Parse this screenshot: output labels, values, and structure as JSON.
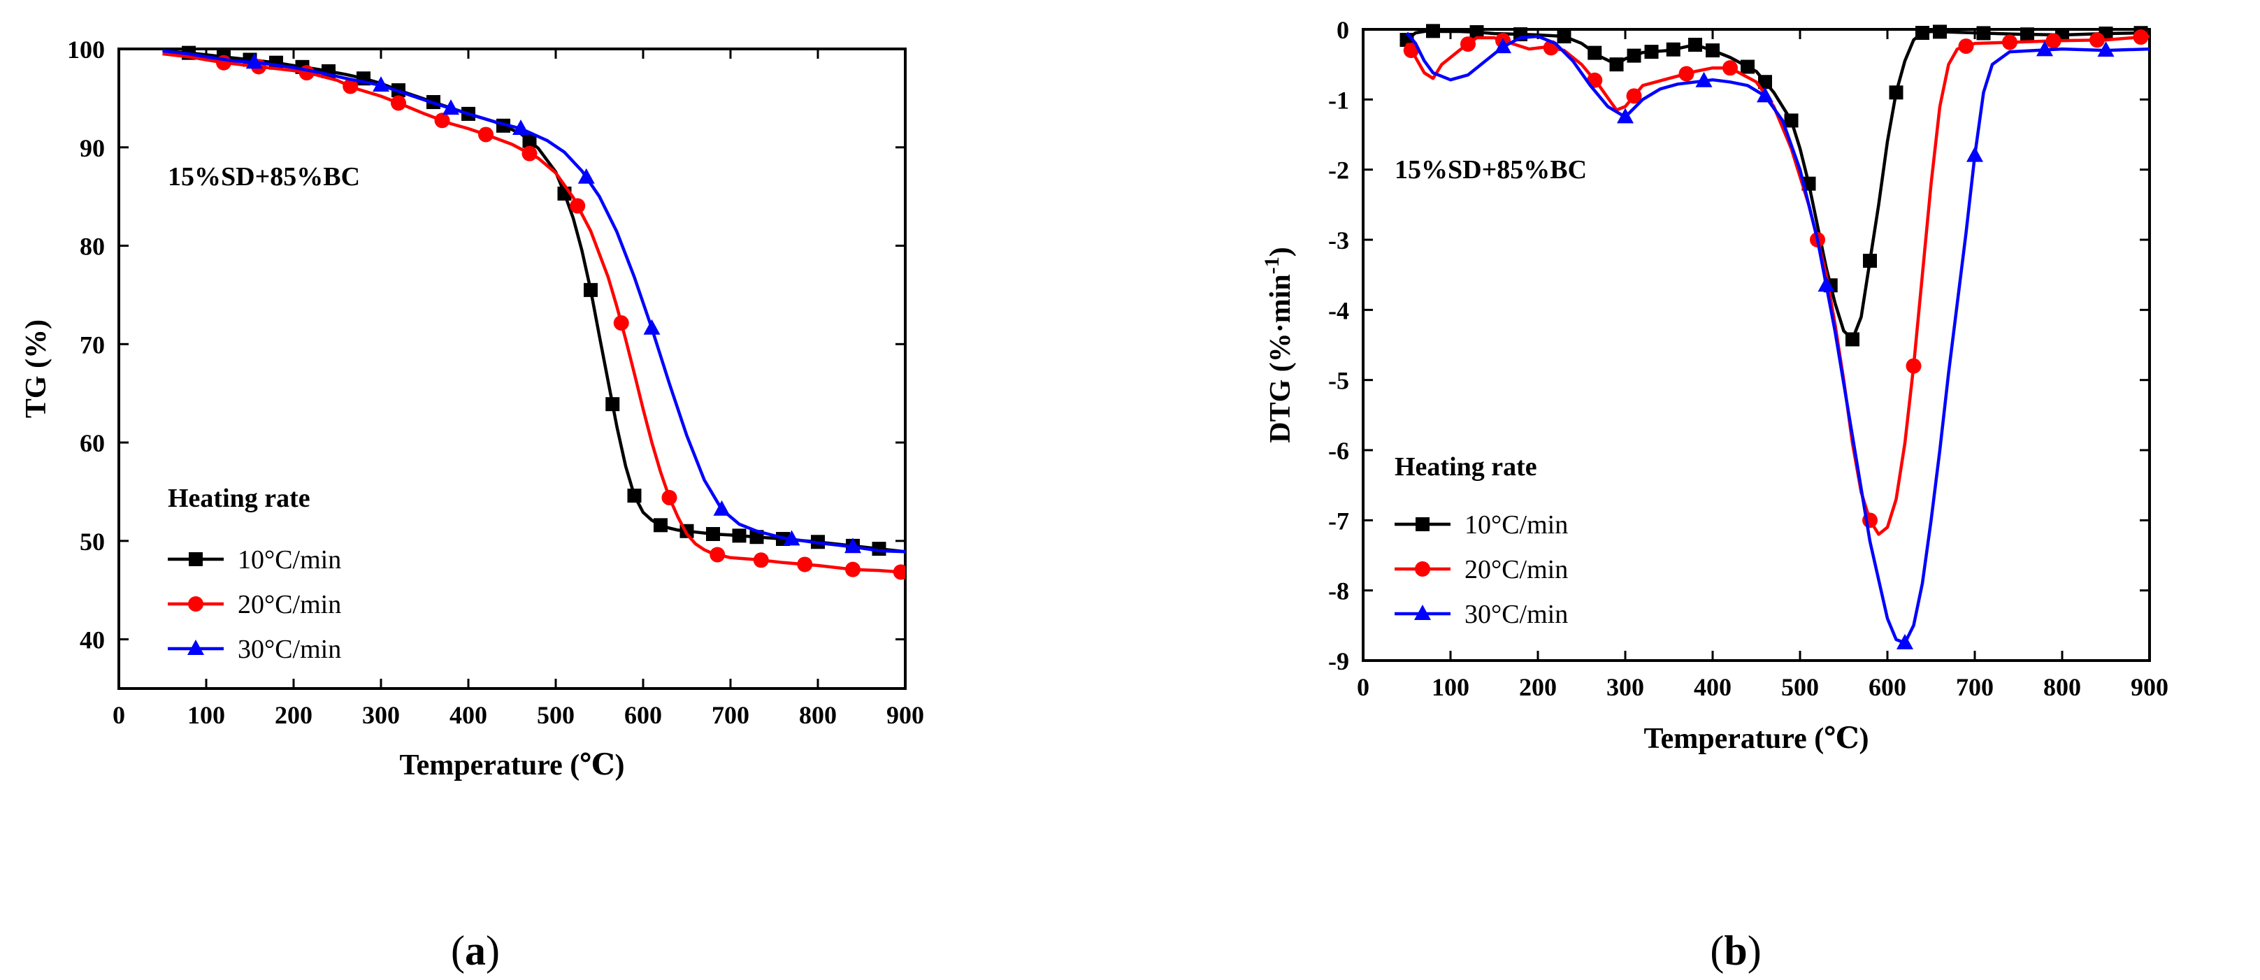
{
  "chart_data": [
    {
      "panel": "a",
      "type": "line",
      "title": "",
      "xlabel": "Temperature (℃)",
      "ylabel": "TG (%)",
      "xlim": [
        0,
        900
      ],
      "ylim": [
        35,
        100
      ],
      "xticks": [
        0,
        100,
        200,
        300,
        400,
        500,
        600,
        700,
        800,
        900
      ],
      "yticks": [
        40,
        50,
        60,
        70,
        80,
        90,
        100
      ],
      "annotation": "15%SD+85%BC",
      "legend_title": "Heating rate",
      "legend_position": "bottom-left",
      "series": [
        {
          "name": "10°C/min",
          "color": "#000000",
          "marker": "square",
          "x": [
            50,
            80,
            100,
            120,
            150,
            180,
            200,
            230,
            260,
            280,
            300,
            320,
            350,
            380,
            400,
            430,
            460,
            480,
            500,
            510,
            520,
            530,
            540,
            550,
            560,
            570,
            580,
            590,
            600,
            610,
            620,
            630,
            640,
            650,
            660,
            680,
            700,
            730,
            760,
            800,
            830,
            860,
            890,
            900
          ],
          "y": [
            99.8,
            99.6,
            99.4,
            99.2,
            98.9,
            98.6,
            98.3,
            97.9,
            97.4,
            97.0,
            96.5,
            95.8,
            94.9,
            94.0,
            93.4,
            92.6,
            91.4,
            89.9,
            87.5,
            85.3,
            82.8,
            79.5,
            75.5,
            70.8,
            66.2,
            61.6,
            57.6,
            54.6,
            52.9,
            52.1,
            51.6,
            51.3,
            51.1,
            51.0,
            50.9,
            50.7,
            50.6,
            50.4,
            50.2,
            49.9,
            49.6,
            49.3,
            49.0,
            48.9
          ],
          "marker_x": [
            80,
            120,
            150,
            180,
            210,
            240,
            280,
            320,
            360,
            400,
            440,
            470,
            510,
            540,
            565,
            590,
            620,
            650,
            680,
            710,
            730,
            760,
            800,
            840,
            870
          ]
        },
        {
          "name": "20°C/min",
          "color": "#ff0000",
          "marker": "circle",
          "x": [
            50,
            80,
            100,
            120,
            150,
            180,
            200,
            220,
            250,
            270,
            300,
            320,
            350,
            380,
            400,
            420,
            450,
            480,
            500,
            520,
            540,
            560,
            570,
            580,
            590,
            600,
            610,
            620,
            630,
            640,
            650,
            660,
            670,
            680,
            700,
            730,
            760,
            800,
            840,
            870,
            900
          ],
          "y": [
            99.5,
            99.2,
            98.9,
            98.6,
            98.3,
            98.0,
            97.8,
            97.5,
            96.8,
            96.0,
            95.2,
            94.5,
            93.4,
            92.4,
            91.9,
            91.3,
            90.3,
            88.9,
            87.4,
            84.9,
            81.5,
            76.8,
            73.8,
            70.5,
            67.0,
            63.4,
            60.0,
            57.0,
            54.4,
            52.4,
            50.7,
            49.7,
            49.1,
            48.7,
            48.3,
            48.1,
            47.8,
            47.5,
            47.1,
            47.0,
            46.8
          ],
          "marker_x": [
            120,
            160,
            215,
            265,
            320,
            370,
            420,
            470,
            525,
            575,
            630,
            685,
            735,
            785,
            840,
            895
          ]
        },
        {
          "name": "30°C/min",
          "color": "#0000ff",
          "marker": "triangle",
          "x": [
            50,
            80,
            100,
            130,
            160,
            200,
            230,
            260,
            300,
            330,
            360,
            400,
            430,
            460,
            490,
            510,
            530,
            550,
            570,
            590,
            610,
            630,
            650,
            670,
            690,
            710,
            730,
            760,
            800,
            840,
            870,
            900
          ],
          "y": [
            99.8,
            99.5,
            99.2,
            98.8,
            98.6,
            98.1,
            97.6,
            97.0,
            96.3,
            95.4,
            94.5,
            93.4,
            92.6,
            91.9,
            90.7,
            89.5,
            87.6,
            85.0,
            81.4,
            76.8,
            71.6,
            66.0,
            60.7,
            56.2,
            53.2,
            51.7,
            51.0,
            50.3,
            49.8,
            49.4,
            49.0,
            48.9
          ],
          "marker_x": [
            155,
            300,
            380,
            460,
            535,
            610,
            690,
            770,
            840
          ]
        }
      ]
    },
    {
      "panel": "b",
      "type": "line",
      "title": "",
      "xlabel": "Temperature (℃)",
      "ylabel": "DTG (%·min",
      "ylabel_sup": "-1",
      "ylabel_tail": ")",
      "xlim": [
        0,
        900
      ],
      "ylim": [
        -9,
        0
      ],
      "xticks": [
        0,
        100,
        200,
        300,
        400,
        500,
        600,
        700,
        800,
        900
      ],
      "yticks": [
        0,
        -1,
        -2,
        -3,
        -4,
        -5,
        -6,
        -7,
        -8,
        -9
      ],
      "annotation": "15%SD+85%BC",
      "legend_title": "Heating rate",
      "legend_position": "bottom-left",
      "series": [
        {
          "name": "10°C/min",
          "color": "#000000",
          "marker": "square",
          "x": [
            50,
            60,
            75,
            90,
            110,
            130,
            150,
            180,
            200,
            230,
            250,
            270,
            290,
            300,
            320,
            350,
            380,
            400,
            420,
            450,
            470,
            490,
            500,
            510,
            520,
            530,
            540,
            550,
            560,
            570,
            580,
            590,
            600,
            610,
            620,
            630,
            640,
            650,
            700,
            750,
            800,
            850,
            900
          ],
          "y": [
            -0.15,
            -0.05,
            -0.02,
            -0.03,
            -0.03,
            -0.04,
            -0.06,
            -0.07,
            -0.08,
            -0.1,
            -0.2,
            -0.38,
            -0.5,
            -0.42,
            -0.33,
            -0.3,
            -0.22,
            -0.3,
            -0.4,
            -0.6,
            -0.9,
            -1.3,
            -1.7,
            -2.2,
            -2.8,
            -3.4,
            -3.9,
            -4.3,
            -4.42,
            -4.1,
            -3.3,
            -2.5,
            -1.6,
            -0.9,
            -0.45,
            -0.15,
            -0.05,
            -0.03,
            -0.05,
            -0.07,
            -0.08,
            -0.06,
            -0.05
          ],
          "marker_x": [
            50,
            80,
            130,
            180,
            230,
            265,
            290,
            310,
            330,
            355,
            380,
            400,
            440,
            460,
            490,
            510,
            535,
            560,
            580,
            610,
            640,
            660,
            710,
            760,
            800,
            850,
            890
          ]
        },
        {
          "name": "20°C/min",
          "color": "#ff0000",
          "marker": "circle",
          "x": [
            50,
            60,
            70,
            80,
            90,
            110,
            130,
            150,
            170,
            190,
            210,
            230,
            250,
            270,
            290,
            300,
            320,
            350,
            380,
            400,
            420,
            450,
            470,
            490,
            510,
            520,
            530,
            540,
            550,
            560,
            570,
            580,
            590,
            600,
            610,
            620,
            630,
            640,
            650,
            660,
            670,
            680,
            700,
            750,
            800,
            850,
            900
          ],
          "y": [
            -0.2,
            -0.4,
            -0.62,
            -0.7,
            -0.5,
            -0.3,
            -0.12,
            -0.12,
            -0.2,
            -0.28,
            -0.25,
            -0.3,
            -0.5,
            -0.8,
            -1.15,
            -1.1,
            -0.8,
            -0.7,
            -0.6,
            -0.55,
            -0.55,
            -0.75,
            -1.1,
            -1.7,
            -2.5,
            -3.0,
            -3.5,
            -4.2,
            -5.0,
            -5.9,
            -6.6,
            -7.0,
            -7.2,
            -7.1,
            -6.7,
            -5.9,
            -4.8,
            -3.5,
            -2.2,
            -1.1,
            -0.5,
            -0.28,
            -0.2,
            -0.18,
            -0.16,
            -0.15,
            -0.1
          ],
          "marker_x": [
            55,
            120,
            160,
            215,
            265,
            310,
            370,
            420,
            520,
            580,
            630,
            690,
            740,
            790,
            840,
            890
          ]
        },
        {
          "name": "30°C/min",
          "color": "#0000ff",
          "marker": "triangle",
          "x": [
            50,
            60,
            70,
            80,
            100,
            120,
            140,
            160,
            180,
            200,
            220,
            240,
            260,
            280,
            300,
            320,
            340,
            360,
            380,
            400,
            420,
            440,
            460,
            480,
            500,
            520,
            540,
            560,
            580,
            600,
            610,
            620,
            630,
            640,
            650,
            660,
            670,
            680,
            690,
            700,
            710,
            720,
            740,
            770,
            800,
            850,
            900
          ],
          "y": [
            -0.05,
            -0.2,
            -0.45,
            -0.62,
            -0.72,
            -0.65,
            -0.45,
            -0.25,
            -0.12,
            -0.1,
            -0.2,
            -0.45,
            -0.8,
            -1.1,
            -1.25,
            -1.0,
            -0.85,
            -0.78,
            -0.75,
            -0.72,
            -0.75,
            -0.8,
            -0.95,
            -1.3,
            -2.0,
            -3.0,
            -4.3,
            -5.8,
            -7.3,
            -8.4,
            -8.7,
            -8.75,
            -8.5,
            -7.9,
            -7.0,
            -6.0,
            -4.9,
            -3.9,
            -2.9,
            -1.8,
            -0.9,
            -0.5,
            -0.32,
            -0.3,
            -0.28,
            -0.3,
            -0.28
          ],
          "marker_x": [
            160,
            300,
            390,
            460,
            530,
            620,
            700,
            780,
            850
          ]
        }
      ]
    }
  ],
  "panel_labels": {
    "a": {
      "open": "(",
      "letter": "a",
      "close": ")"
    },
    "b": {
      "open": "(",
      "letter": "b",
      "close": ")"
    }
  }
}
